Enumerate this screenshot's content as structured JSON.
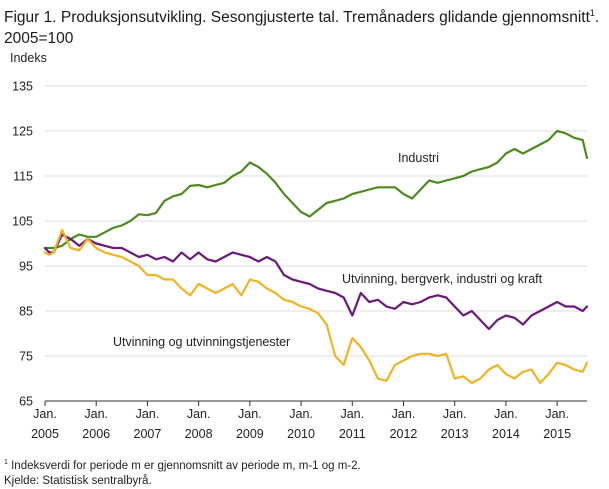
{
  "figure": {
    "title_part1": "Figur 1. Produksjonsutvikling. Sesongjusterte tal. Tremånaders glidande gjennomsnitt",
    "title_sup": "1",
    "title_part2": ". 2005=100",
    "footnote_sup": "1",
    "footnote_text": " Indeksverdi for periode m er gjennomsnitt av periode m, m-1 og m-2.",
    "source": "Kjelde: Statistisk sentralbyrå."
  },
  "chart_data": {
    "type": "line",
    "ylabel": "Indeks",
    "xlabel": "",
    "ylim": [
      65,
      135
    ],
    "yticks": [
      65,
      75,
      85,
      95,
      105,
      115,
      125,
      135
    ],
    "xlim": [
      2005.0,
      2015.583
    ],
    "xticks": [
      {
        "line1": "Jan.",
        "line2": "2005",
        "x": 2005
      },
      {
        "line1": "Jan.",
        "line2": "2006",
        "x": 2006
      },
      {
        "line1": "Jan.",
        "line2": "2007",
        "x": 2007
      },
      {
        "line1": "Jan.",
        "line2": "2008",
        "x": 2008
      },
      {
        "line1": "Jan.",
        "line2": "2009",
        "x": 2009
      },
      {
        "line1": "Jan.",
        "line2": "2010",
        "x": 2010
      },
      {
        "line1": "Jan.",
        "line2": "2011",
        "x": 2011
      },
      {
        "line1": "Jan.",
        "line2": "2012",
        "x": 2012
      },
      {
        "line1": "Jan.",
        "line2": "2013",
        "x": 2013
      },
      {
        "line1": "Jan.",
        "line2": "2014",
        "x": 2014
      },
      {
        "line1": "Jan.",
        "line2": "2015",
        "x": 2015
      }
    ],
    "grid": true,
    "series": [
      {
        "name": "Industri",
        "color": "#4d8a1f",
        "points": [
          [
            2005.0,
            99
          ],
          [
            2005.167,
            99
          ],
          [
            2005.333,
            99.5
          ],
          [
            2005.5,
            101
          ],
          [
            2005.667,
            102
          ],
          [
            2005.833,
            101.5
          ],
          [
            2006.0,
            101.5
          ],
          [
            2006.167,
            102.5
          ],
          [
            2006.333,
            103.5
          ],
          [
            2006.5,
            104
          ],
          [
            2006.667,
            105
          ],
          [
            2006.833,
            106.5
          ],
          [
            2007.0,
            106.3
          ],
          [
            2007.167,
            106.8
          ],
          [
            2007.333,
            109.5
          ],
          [
            2007.5,
            110.5
          ],
          [
            2007.667,
            111
          ],
          [
            2007.833,
            112.8
          ],
          [
            2008.0,
            113
          ],
          [
            2008.167,
            112.5
          ],
          [
            2008.333,
            113
          ],
          [
            2008.5,
            113.5
          ],
          [
            2008.667,
            115
          ],
          [
            2008.833,
            116
          ],
          [
            2009.0,
            118
          ],
          [
            2009.167,
            117
          ],
          [
            2009.333,
            115.5
          ],
          [
            2009.5,
            113.5
          ],
          [
            2009.667,
            111
          ],
          [
            2009.833,
            109
          ],
          [
            2010.0,
            107
          ],
          [
            2010.167,
            106
          ],
          [
            2010.333,
            107.5
          ],
          [
            2010.5,
            109
          ],
          [
            2010.667,
            109.5
          ],
          [
            2010.833,
            110
          ],
          [
            2011.0,
            111
          ],
          [
            2011.167,
            111.5
          ],
          [
            2011.333,
            112
          ],
          [
            2011.5,
            112.5
          ],
          [
            2011.667,
            112.5
          ],
          [
            2011.833,
            112.5
          ],
          [
            2012.0,
            111
          ],
          [
            2012.167,
            110
          ],
          [
            2012.333,
            112
          ],
          [
            2012.5,
            114
          ],
          [
            2012.667,
            113.5
          ],
          [
            2012.833,
            114
          ],
          [
            2013.0,
            114.5
          ],
          [
            2013.167,
            115
          ],
          [
            2013.333,
            116
          ],
          [
            2013.5,
            116.5
          ],
          [
            2013.667,
            117
          ],
          [
            2013.833,
            118
          ],
          [
            2014.0,
            120
          ],
          [
            2014.167,
            121
          ],
          [
            2014.333,
            120
          ],
          [
            2014.5,
            121
          ],
          [
            2014.667,
            122
          ],
          [
            2014.833,
            123
          ],
          [
            2015.0,
            125
          ],
          [
            2015.167,
            124.5
          ],
          [
            2015.333,
            123.5
          ],
          [
            2015.5,
            123
          ],
          [
            2015.583,
            119
          ]
        ]
      },
      {
        "name": "Utvinning, bergverk, industri og kraft",
        "color": "#6a1a7a",
        "points": [
          [
            2005.0,
            99
          ],
          [
            2005.083,
            98
          ],
          [
            2005.167,
            98
          ],
          [
            2005.333,
            102
          ],
          [
            2005.5,
            101
          ],
          [
            2005.667,
            99.5
          ],
          [
            2005.833,
            101
          ],
          [
            2006.0,
            100
          ],
          [
            2006.167,
            99.5
          ],
          [
            2006.333,
            99
          ],
          [
            2006.5,
            99
          ],
          [
            2006.667,
            98
          ],
          [
            2006.833,
            97
          ],
          [
            2007.0,
            97.5
          ],
          [
            2007.167,
            96.5
          ],
          [
            2007.333,
            97
          ],
          [
            2007.5,
            96
          ],
          [
            2007.667,
            98
          ],
          [
            2007.833,
            96.5
          ],
          [
            2008.0,
            98
          ],
          [
            2008.167,
            96.5
          ],
          [
            2008.333,
            96
          ],
          [
            2008.5,
            97
          ],
          [
            2008.667,
            98
          ],
          [
            2008.833,
            97.5
          ],
          [
            2009.0,
            97
          ],
          [
            2009.167,
            96
          ],
          [
            2009.333,
            97
          ],
          [
            2009.5,
            96
          ],
          [
            2009.667,
            93
          ],
          [
            2009.833,
            92
          ],
          [
            2010.0,
            91.5
          ],
          [
            2010.167,
            91
          ],
          [
            2010.333,
            90
          ],
          [
            2010.5,
            89.5
          ],
          [
            2010.667,
            89
          ],
          [
            2010.833,
            88
          ],
          [
            2011.0,
            84
          ],
          [
            2011.167,
            89
          ],
          [
            2011.333,
            87
          ],
          [
            2011.5,
            87.5
          ],
          [
            2011.667,
            86
          ],
          [
            2011.833,
            85.5
          ],
          [
            2012.0,
            87
          ],
          [
            2012.167,
            86.5
          ],
          [
            2012.333,
            87
          ],
          [
            2012.5,
            88
          ],
          [
            2012.667,
            88.5
          ],
          [
            2012.833,
            88
          ],
          [
            2013.0,
            86
          ],
          [
            2013.167,
            84
          ],
          [
            2013.333,
            85
          ],
          [
            2013.5,
            83
          ],
          [
            2013.667,
            81
          ],
          [
            2013.833,
            83
          ],
          [
            2014.0,
            84
          ],
          [
            2014.167,
            83.5
          ],
          [
            2014.333,
            82
          ],
          [
            2014.5,
            84
          ],
          [
            2014.667,
            85
          ],
          [
            2014.833,
            86
          ],
          [
            2015.0,
            87
          ],
          [
            2015.167,
            86
          ],
          [
            2015.333,
            86
          ],
          [
            2015.5,
            85
          ],
          [
            2015.583,
            86
          ]
        ]
      },
      {
        "name": "Utvinning og utvinningstjenester",
        "color": "#f0b323",
        "points": [
          [
            2005.0,
            98
          ],
          [
            2005.083,
            97.5
          ],
          [
            2005.167,
            98
          ],
          [
            2005.333,
            103
          ],
          [
            2005.5,
            99
          ],
          [
            2005.667,
            98.5
          ],
          [
            2005.833,
            101
          ],
          [
            2006.0,
            99
          ],
          [
            2006.167,
            98
          ],
          [
            2006.333,
            97.5
          ],
          [
            2006.5,
            97
          ],
          [
            2006.667,
            96
          ],
          [
            2006.833,
            95
          ],
          [
            2007.0,
            93
          ],
          [
            2007.167,
            93
          ],
          [
            2007.333,
            92
          ],
          [
            2007.5,
            92
          ],
          [
            2007.667,
            90
          ],
          [
            2007.833,
            88.5
          ],
          [
            2008.0,
            91
          ],
          [
            2008.167,
            90
          ],
          [
            2008.333,
            89
          ],
          [
            2008.5,
            90
          ],
          [
            2008.667,
            91
          ],
          [
            2008.833,
            88.5
          ],
          [
            2009.0,
            92
          ],
          [
            2009.167,
            91.5
          ],
          [
            2009.333,
            90
          ],
          [
            2009.5,
            89
          ],
          [
            2009.667,
            87.5
          ],
          [
            2009.833,
            87
          ],
          [
            2010.0,
            86
          ],
          [
            2010.167,
            85.5
          ],
          [
            2010.333,
            84.5
          ],
          [
            2010.5,
            82
          ],
          [
            2010.667,
            75
          ],
          [
            2010.833,
            73
          ],
          [
            2011.0,
            79
          ],
          [
            2011.167,
            77
          ],
          [
            2011.333,
            74
          ],
          [
            2011.5,
            70
          ],
          [
            2011.667,
            69.5
          ],
          [
            2011.833,
            73
          ],
          [
            2012.0,
            74
          ],
          [
            2012.167,
            75
          ],
          [
            2012.333,
            75.5
          ],
          [
            2012.5,
            75.5
          ],
          [
            2012.667,
            75
          ],
          [
            2012.833,
            75.5
          ],
          [
            2013.0,
            70
          ],
          [
            2013.167,
            70.5
          ],
          [
            2013.333,
            69
          ],
          [
            2013.5,
            70
          ],
          [
            2013.667,
            72
          ],
          [
            2013.833,
            73
          ],
          [
            2014.0,
            71
          ],
          [
            2014.167,
            70
          ],
          [
            2014.333,
            71.5
          ],
          [
            2014.5,
            72
          ],
          [
            2014.667,
            69
          ],
          [
            2014.833,
            71
          ],
          [
            2015.0,
            73.5
          ],
          [
            2015.167,
            73
          ],
          [
            2015.333,
            72
          ],
          [
            2015.5,
            71.5
          ],
          [
            2015.583,
            73.5
          ]
        ]
      }
    ]
  }
}
